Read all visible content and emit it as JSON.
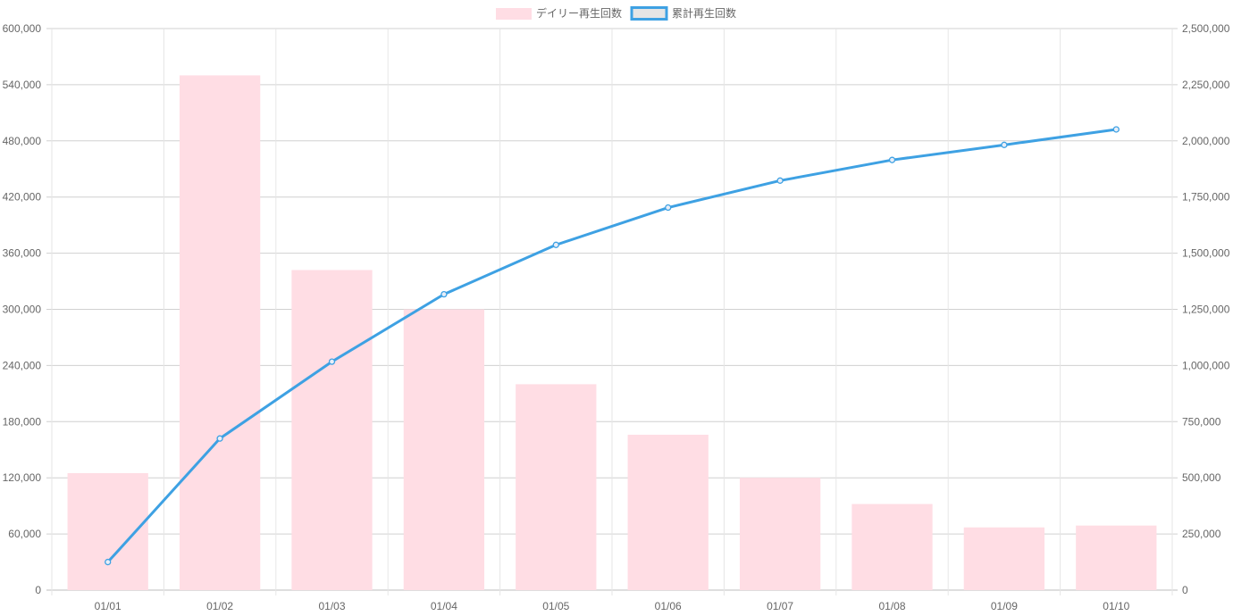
{
  "chart_data": {
    "type": "bar",
    "categories": [
      "01/01",
      "01/02",
      "01/03",
      "01/04",
      "01/05",
      "01/06",
      "01/07",
      "01/08",
      "01/09",
      "01/10"
    ],
    "series": [
      {
        "name": "デイリー再生回数",
        "type": "bar",
        "axis": "left",
        "color": "#ffdde4",
        "values": [
          125000,
          550000,
          342000,
          300000,
          220000,
          166000,
          120000,
          92000,
          67000,
          69000
        ]
      },
      {
        "name": "累計再生回数",
        "type": "line",
        "axis": "right",
        "color": "#3ea1e3",
        "values": [
          125000,
          675000,
          1017000,
          1317000,
          1537000,
          1703000,
          1823000,
          1915000,
          1982000,
          2051000
        ]
      }
    ],
    "y_left": {
      "min": 0,
      "max": 600000,
      "ticks": [
        "0",
        "60,000",
        "120,000",
        "180,000",
        "240,000",
        "300,000",
        "360,000",
        "420,000",
        "480,000",
        "540,000",
        "600,000"
      ]
    },
    "y_right": {
      "min": 0,
      "max": 2500000,
      "ticks": [
        "0",
        "250,000",
        "500,000",
        "750,000",
        "1,000,000",
        "1,250,000",
        "1,500,000",
        "1,750,000",
        "2,000,000",
        "2,250,000",
        "2,500,000"
      ]
    },
    "grid": true,
    "legend_position": "top-center"
  }
}
